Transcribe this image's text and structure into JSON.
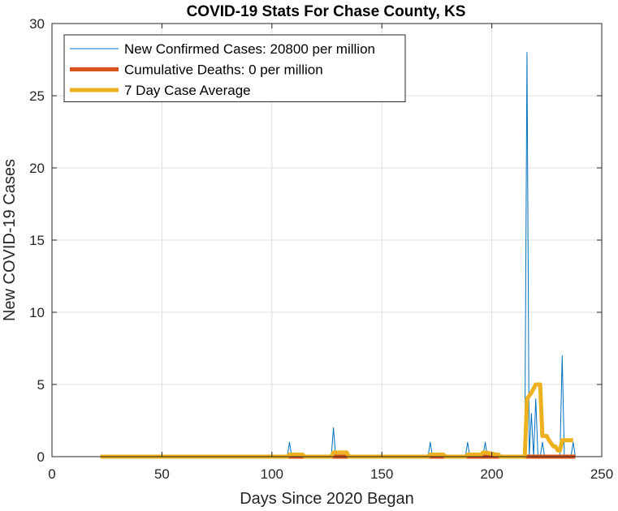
{
  "chart_data": {
    "type": "line",
    "title": "COVID-19 Stats For Chase County, KS",
    "xlabel": "Days Since 2020 Began",
    "ylabel": "New COVID-19 Cases",
    "xlim": [
      0,
      250
    ],
    "ylim": [
      0,
      30
    ],
    "xticks": [
      0,
      50,
      100,
      150,
      200,
      250
    ],
    "yticks": [
      0,
      5,
      10,
      15,
      20,
      25,
      30
    ],
    "grid": true,
    "legend_position": "top-left",
    "series": [
      {
        "name": "New Confirmed Cases: 20800 per million",
        "color": "#0072BD",
        "style": "thin",
        "points": [
          [
            22,
            0
          ],
          [
            107,
            0
          ],
          [
            108,
            1
          ],
          [
            109,
            0
          ],
          [
            127,
            0
          ],
          [
            128,
            2
          ],
          [
            129,
            0
          ],
          [
            171,
            0
          ],
          [
            172,
            1
          ],
          [
            173,
            0
          ],
          [
            188,
            0
          ],
          [
            189,
            1
          ],
          [
            190,
            0
          ],
          [
            196,
            0
          ],
          [
            197,
            1
          ],
          [
            198,
            0
          ],
          [
            215,
            0
          ],
          [
            216,
            28
          ],
          [
            217,
            0
          ],
          [
            218,
            3
          ],
          [
            219,
            0
          ],
          [
            220,
            4
          ],
          [
            221,
            0
          ],
          [
            222,
            0
          ],
          [
            223,
            1
          ],
          [
            224,
            0
          ],
          [
            231,
            0
          ],
          [
            232,
            7
          ],
          [
            233,
            0
          ],
          [
            236,
            0
          ],
          [
            237,
            1
          ],
          [
            238,
            0
          ]
        ]
      },
      {
        "name": "Cumulative Deaths: 0 per million",
        "color": "#D95319",
        "style": "thick",
        "points": [
          [
            22,
            0
          ],
          [
            238,
            0
          ]
        ]
      },
      {
        "name": "7 Day Case Average",
        "color": "#EDB120",
        "style": "thick",
        "points": [
          [
            22,
            0
          ],
          [
            107,
            0
          ],
          [
            108,
            0.14
          ],
          [
            114,
            0.14
          ],
          [
            115,
            0
          ],
          [
            127,
            0
          ],
          [
            128,
            0.29
          ],
          [
            134,
            0.29
          ],
          [
            135,
            0
          ],
          [
            171,
            0
          ],
          [
            172,
            0.14
          ],
          [
            178,
            0.14
          ],
          [
            179,
            0
          ],
          [
            188,
            0
          ],
          [
            189,
            0.14
          ],
          [
            195,
            0.14
          ],
          [
            196,
            0.29
          ],
          [
            197,
            0.29
          ],
          [
            202,
            0.14
          ],
          [
            203,
            0.14
          ],
          [
            204,
            0
          ],
          [
            215,
            0
          ],
          [
            216,
            4
          ],
          [
            218,
            4.43
          ],
          [
            220,
            5
          ],
          [
            222,
            5
          ],
          [
            223,
            1.43
          ],
          [
            225,
            1.43
          ],
          [
            226,
            1.14
          ],
          [
            228,
            0.71
          ],
          [
            229,
            0.71
          ],
          [
            230,
            0.43
          ],
          [
            231,
            0.43
          ],
          [
            232,
            1.14
          ],
          [
            237,
            1.14
          ]
        ]
      }
    ]
  }
}
